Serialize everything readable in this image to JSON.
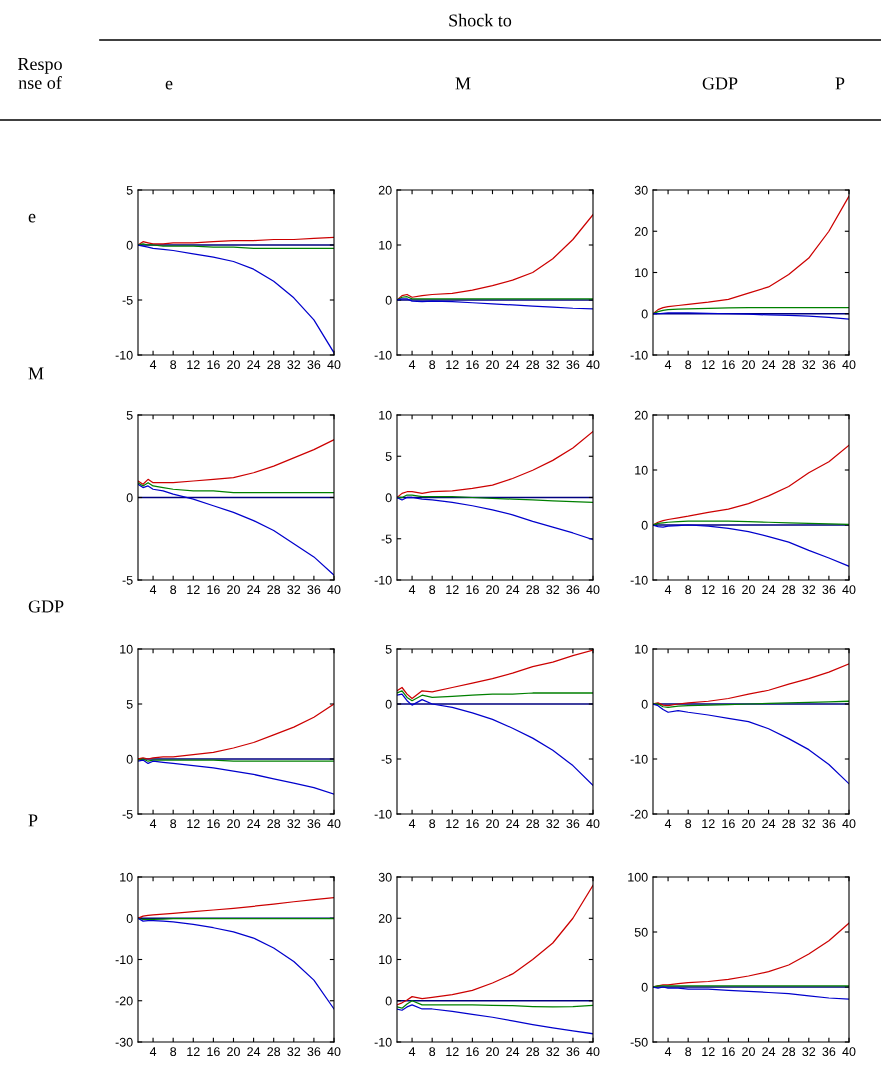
{
  "chart_data": [
    {
      "type": "other",
      "annotations": [
        "Shock to",
        "Respo\nnse of",
        "e",
        "M",
        "GDP",
        "P",
        "e",
        "M",
        "GDP",
        "P"
      ]
    },
    {
      "type": "line",
      "x": [
        1,
        2,
        3,
        4,
        6,
        8,
        12,
        16,
        20,
        24,
        28,
        32,
        36,
        40
      ],
      "xlim": [
        1,
        40
      ],
      "xticks": [
        4,
        8,
        12,
        16,
        20,
        24,
        28,
        32,
        36,
        40
      ],
      "ylim": [
        -10,
        5
      ],
      "yticks": [
        -10,
        -5,
        0,
        5
      ],
      "ref_lines": [
        {
          "axis": "y",
          "value": 0,
          "color": "#00007f"
        }
      ],
      "series": [
        {
          "color": "#cc0000",
          "values": [
            0,
            0.3,
            0.2,
            0.1,
            0.1,
            0.2,
            0.2,
            0.3,
            0.4,
            0.4,
            0.5,
            0.5,
            0.6,
            0.7
          ]
        },
        {
          "color": "#008000",
          "values": [
            0,
            0.1,
            0,
            0,
            -0.1,
            -0.1,
            -0.1,
            -0.2,
            -0.2,
            -0.3,
            -0.3,
            -0.3,
            -0.3,
            -0.3
          ]
        },
        {
          "color": "#0000cc",
          "values": [
            0,
            -0.1,
            -0.2,
            -0.3,
            -0.4,
            -0.5,
            -0.8,
            -1.1,
            -1.5,
            -2.2,
            -3.3,
            -4.8,
            -6.8,
            -9.8
          ]
        }
      ]
    },
    {
      "type": "line",
      "x": [
        1,
        2,
        3,
        4,
        6,
        8,
        12,
        16,
        20,
        24,
        28,
        32,
        36,
        40
      ],
      "xlim": [
        1,
        40
      ],
      "xticks": [
        4,
        8,
        12,
        16,
        20,
        24,
        28,
        32,
        36,
        40
      ],
      "ylim": [
        -10,
        20
      ],
      "yticks": [
        -10,
        0,
        10,
        20
      ],
      "ref_lines": [
        {
          "axis": "y",
          "value": 0,
          "color": "#00007f"
        }
      ],
      "series": [
        {
          "color": "#cc0000",
          "values": [
            0,
            0.8,
            1,
            0.5,
            0.8,
            1,
            1.2,
            1.8,
            2.6,
            3.6,
            5,
            7.5,
            11,
            15.5
          ]
        },
        {
          "color": "#008000",
          "values": [
            0,
            0.5,
            0.6,
            0.2,
            0.2,
            0.2,
            0.2,
            0.2,
            0.2,
            0.2,
            0.2,
            0.2,
            0.2,
            0.2
          ]
        },
        {
          "color": "#0000cc",
          "values": [
            0,
            0.2,
            0.2,
            -0.2,
            -0.3,
            -0.2,
            -0.3,
            -0.5,
            -0.7,
            -0.9,
            -1.1,
            -1.3,
            -1.5,
            -1.6
          ]
        }
      ]
    },
    {
      "type": "line",
      "x": [
        1,
        2,
        3,
        4,
        6,
        8,
        12,
        16,
        20,
        24,
        28,
        32,
        36,
        40
      ],
      "xlim": [
        1,
        40
      ],
      "xticks": [
        4,
        8,
        12,
        16,
        20,
        24,
        28,
        32,
        36,
        40
      ],
      "ylim": [
        -10,
        30
      ],
      "yticks": [
        -10,
        0,
        10,
        20,
        30
      ],
      "ref_lines": [
        {
          "axis": "y",
          "value": 0,
          "color": "#00007f"
        }
      ],
      "series": [
        {
          "color": "#cc0000",
          "values": [
            0,
            1,
            1.5,
            1.7,
            2,
            2.3,
            2.8,
            3.5,
            5,
            6.5,
            9.5,
            13.5,
            20,
            28.5
          ]
        },
        {
          "color": "#008000",
          "values": [
            0,
            0.5,
            0.8,
            1,
            1.1,
            1.2,
            1.3,
            1.4,
            1.5,
            1.5,
            1.5,
            1.5,
            1.5,
            1.5
          ]
        },
        {
          "color": "#0000cc",
          "values": [
            0,
            0,
            0.1,
            0.2,
            0.2,
            0.2,
            0.1,
            0,
            -0.1,
            -0.3,
            -0.4,
            -0.6,
            -0.9,
            -1.3
          ]
        }
      ]
    },
    {
      "type": "line",
      "x": [
        1,
        2,
        3,
        4,
        6,
        8,
        12,
        16,
        20,
        24,
        28,
        32,
        36,
        40
      ],
      "xlim": [
        1,
        40
      ],
      "xticks": [
        4,
        8,
        12,
        16,
        20,
        24,
        28,
        32,
        36,
        40
      ],
      "ylim": [
        -5,
        5
      ],
      "yticks": [
        -5,
        0,
        5
      ],
      "ref_lines": [
        {
          "axis": "y",
          "value": 0,
          "color": "#00007f"
        }
      ],
      "series": [
        {
          "color": "#cc0000",
          "values": [
            1,
            0.8,
            1.1,
            0.9,
            0.9,
            0.9,
            1,
            1.1,
            1.2,
            1.5,
            1.9,
            2.4,
            2.9,
            3.5
          ]
        },
        {
          "color": "#008000",
          "values": [
            0.9,
            0.7,
            0.9,
            0.7,
            0.6,
            0.5,
            0.4,
            0.4,
            0.3,
            0.3,
            0.3,
            0.3,
            0.3,
            0.3
          ]
        },
        {
          "color": "#0000cc",
          "values": [
            0.8,
            0.6,
            0.7,
            0.5,
            0.4,
            0.2,
            -0.1,
            -0.5,
            -0.9,
            -1.4,
            -2,
            -2.8,
            -3.6,
            -4.7
          ]
        }
      ]
    },
    {
      "type": "line",
      "x": [
        1,
        2,
        3,
        4,
        6,
        8,
        12,
        16,
        20,
        24,
        28,
        32,
        36,
        40
      ],
      "xlim": [
        1,
        40
      ],
      "xticks": [
        4,
        8,
        12,
        16,
        20,
        24,
        28,
        32,
        36,
        40
      ],
      "ylim": [
        -10,
        10
      ],
      "yticks": [
        -10,
        -5,
        0,
        5,
        10
      ],
      "ref_lines": [
        {
          "axis": "y",
          "value": 0,
          "color": "#00007f"
        }
      ],
      "series": [
        {
          "color": "#cc0000",
          "values": [
            0,
            0.5,
            0.7,
            0.7,
            0.5,
            0.7,
            0.8,
            1.1,
            1.5,
            2.3,
            3.3,
            4.5,
            6,
            8
          ]
        },
        {
          "color": "#008000",
          "values": [
            0,
            0,
            0.3,
            0.3,
            0.1,
            0.1,
            0.1,
            0,
            -0.1,
            -0.2,
            -0.3,
            -0.4,
            -0.5,
            -0.6
          ]
        },
        {
          "color": "#0000cc",
          "values": [
            0,
            -0.3,
            0,
            0,
            -0.2,
            -0.3,
            -0.6,
            -1,
            -1.5,
            -2.1,
            -2.9,
            -3.6,
            -4.3,
            -5.1
          ]
        }
      ]
    },
    {
      "type": "line",
      "x": [
        1,
        2,
        3,
        4,
        6,
        8,
        12,
        16,
        20,
        24,
        28,
        32,
        36,
        40
      ],
      "xlim": [
        1,
        40
      ],
      "xticks": [
        4,
        8,
        12,
        16,
        20,
        24,
        28,
        32,
        36,
        40
      ],
      "ylim": [
        -10,
        20
      ],
      "yticks": [
        -10,
        0,
        10,
        20
      ],
      "ref_lines": [
        {
          "axis": "y",
          "value": 0,
          "color": "#00007f"
        }
      ],
      "series": [
        {
          "color": "#cc0000",
          "values": [
            0,
            0.5,
            0.8,
            1,
            1.3,
            1.6,
            2.3,
            2.9,
            3.9,
            5.3,
            7,
            9.5,
            11.5,
            14.5
          ]
        },
        {
          "color": "#008000",
          "values": [
            0,
            0.3,
            0.4,
            0.5,
            0.6,
            0.7,
            0.7,
            0.7,
            0.6,
            0.5,
            0.4,
            0.3,
            0.2,
            0.1
          ]
        },
        {
          "color": "#0000cc",
          "values": [
            0,
            -0.3,
            -0.4,
            -0.2,
            -0.1,
            0,
            -0.2,
            -0.6,
            -1.2,
            -2.1,
            -3.1,
            -4.6,
            -6,
            -7.5
          ]
        }
      ]
    },
    {
      "type": "line",
      "x": [
        1,
        2,
        3,
        4,
        6,
        8,
        12,
        16,
        20,
        24,
        28,
        32,
        36,
        40
      ],
      "xlim": [
        1,
        40
      ],
      "xticks": [
        4,
        8,
        12,
        16,
        20,
        24,
        28,
        32,
        36,
        40
      ],
      "ylim": [
        -5,
        10
      ],
      "yticks": [
        -5,
        0,
        5,
        10
      ],
      "ref_lines": [
        {
          "axis": "y",
          "value": 0,
          "color": "#00007f"
        }
      ],
      "series": [
        {
          "color": "#cc0000",
          "values": [
            0,
            0.1,
            0,
            0.1,
            0.2,
            0.2,
            0.4,
            0.6,
            1,
            1.5,
            2.2,
            2.9,
            3.8,
            5
          ]
        },
        {
          "color": "#008000",
          "values": [
            -0.1,
            0,
            -0.2,
            -0.1,
            -0.1,
            -0.1,
            -0.1,
            -0.1,
            -0.2,
            -0.2,
            -0.2,
            -0.2,
            -0.2,
            -0.2
          ]
        },
        {
          "color": "#0000cc",
          "values": [
            -0.2,
            -0.1,
            -0.4,
            -0.2,
            -0.3,
            -0.4,
            -0.6,
            -0.8,
            -1.1,
            -1.4,
            -1.8,
            -2.2,
            -2.6,
            -3.2
          ]
        }
      ]
    },
    {
      "type": "line",
      "x": [
        1,
        2,
        3,
        4,
        6,
        8,
        12,
        16,
        20,
        24,
        28,
        32,
        36,
        40
      ],
      "xlim": [
        1,
        40
      ],
      "xticks": [
        4,
        8,
        12,
        16,
        20,
        24,
        28,
        32,
        36,
        40
      ],
      "ylim": [
        -10,
        5
      ],
      "yticks": [
        -10,
        -5,
        0,
        5
      ],
      "ref_lines": [
        {
          "axis": "y",
          "value": 0,
          "color": "#00007f"
        }
      ],
      "series": [
        {
          "color": "#cc0000",
          "values": [
            1.2,
            1.5,
            0.9,
            0.5,
            1.2,
            1.1,
            1.5,
            1.9,
            2.3,
            2.8,
            3.4,
            3.8,
            4.4,
            4.9
          ]
        },
        {
          "color": "#008000",
          "values": [
            1,
            1.2,
            0.6,
            0.3,
            0.8,
            0.6,
            0.7,
            0.8,
            0.9,
            0.9,
            1,
            1,
            1,
            1
          ]
        },
        {
          "color": "#0000cc",
          "values": [
            0.8,
            0.9,
            0.3,
            -0.1,
            0.4,
            0,
            -0.3,
            -0.8,
            -1.4,
            -2.2,
            -3.1,
            -4.2,
            -5.6,
            -7.4
          ]
        }
      ]
    },
    {
      "type": "line",
      "x": [
        1,
        2,
        3,
        4,
        6,
        8,
        12,
        16,
        20,
        24,
        28,
        32,
        36,
        40
      ],
      "xlim": [
        1,
        40
      ],
      "xticks": [
        4,
        8,
        12,
        16,
        20,
        24,
        28,
        32,
        36,
        40
      ],
      "ylim": [
        -20,
        10
      ],
      "yticks": [
        -20,
        -10,
        0,
        10
      ],
      "ref_lines": [
        {
          "axis": "y",
          "value": 0,
          "color": "#00007f"
        }
      ],
      "series": [
        {
          "color": "#cc0000",
          "values": [
            0,
            0.2,
            -0.2,
            -0.3,
            0,
            0.2,
            0.5,
            1,
            1.8,
            2.5,
            3.6,
            4.6,
            5.8,
            7.3
          ]
        },
        {
          "color": "#008000",
          "values": [
            0,
            0,
            -0.5,
            -0.6,
            -0.4,
            -0.3,
            -0.2,
            -0.1,
            0,
            0.1,
            0.2,
            0.3,
            0.4,
            0.5
          ]
        },
        {
          "color": "#0000cc",
          "values": [
            0,
            -0.3,
            -1,
            -1.5,
            -1.2,
            -1.5,
            -2,
            -2.6,
            -3.2,
            -4.5,
            -6.3,
            -8.3,
            -11,
            -14.5
          ]
        }
      ]
    },
    {
      "type": "line",
      "x": [
        1,
        2,
        3,
        4,
        6,
        8,
        12,
        16,
        20,
        24,
        28,
        32,
        36,
        40
      ],
      "xlim": [
        1,
        40
      ],
      "xticks": [
        4,
        8,
        12,
        16,
        20,
        24,
        28,
        32,
        36,
        40
      ],
      "ylim": [
        -30,
        10
      ],
      "yticks": [
        -30,
        -20,
        -10,
        0,
        10
      ],
      "ref_lines": [
        {
          "axis": "y",
          "value": 0,
          "color": "#00007f"
        }
      ],
      "series": [
        {
          "color": "#cc0000",
          "values": [
            0,
            0.5,
            0.7,
            0.8,
            1,
            1.2,
            1.6,
            2,
            2.4,
            2.9,
            3.4,
            4,
            4.5,
            5
          ]
        },
        {
          "color": "#008000",
          "values": [
            0,
            -0.3,
            -0.3,
            -0.3,
            -0.2,
            -0.1,
            -0.1,
            -0.1,
            -0.1,
            -0.1,
            -0.1,
            -0.1,
            -0.1,
            -0.1
          ]
        },
        {
          "color": "#0000cc",
          "values": [
            0,
            -0.7,
            -0.6,
            -0.6,
            -0.7,
            -0.9,
            -1.5,
            -2.3,
            -3.3,
            -4.8,
            -7.2,
            -10.5,
            -15,
            -22
          ]
        }
      ]
    },
    {
      "type": "line",
      "x": [
        1,
        2,
        3,
        4,
        6,
        8,
        12,
        16,
        20,
        24,
        28,
        32,
        36,
        40
      ],
      "xlim": [
        1,
        40
      ],
      "xticks": [
        4,
        8,
        12,
        16,
        20,
        24,
        28,
        32,
        36,
        40
      ],
      "ylim": [
        -10,
        30
      ],
      "yticks": [
        -10,
        0,
        10,
        20,
        30
      ],
      "ref_lines": [
        {
          "axis": "y",
          "value": 0,
          "color": "#00007f"
        }
      ],
      "series": [
        {
          "color": "#cc0000",
          "values": [
            -1,
            -0.5,
            0.2,
            1,
            0.5,
            0.8,
            1.5,
            2.5,
            4.3,
            6.5,
            10,
            14,
            20,
            28
          ]
        },
        {
          "color": "#008000",
          "values": [
            -1.5,
            -1.8,
            -0.8,
            0,
            -1,
            -1,
            -1,
            -1,
            -1.1,
            -1.2,
            -1.4,
            -1.5,
            -1.4,
            -1.1
          ]
        },
        {
          "color": "#0000cc",
          "values": [
            -2,
            -2.3,
            -1.5,
            -1,
            -2,
            -2,
            -2.6,
            -3.3,
            -4,
            -4.9,
            -5.8,
            -6.6,
            -7.3,
            -8
          ]
        }
      ]
    },
    {
      "type": "line",
      "x": [
        1,
        2,
        3,
        4,
        6,
        8,
        12,
        16,
        20,
        24,
        28,
        32,
        36,
        40
      ],
      "xlim": [
        1,
        40
      ],
      "xticks": [
        4,
        8,
        12,
        16,
        20,
        24,
        28,
        32,
        36,
        40
      ],
      "ylim": [
        -50,
        100
      ],
      "yticks": [
        -50,
        0,
        50,
        100
      ],
      "ref_lines": [
        {
          "axis": "y",
          "value": 0,
          "color": "#00007f"
        }
      ],
      "series": [
        {
          "color": "#cc0000",
          "values": [
            0,
            1,
            2,
            2,
            3,
            4,
            5,
            7,
            10,
            14,
            20,
            30,
            42,
            58
          ]
        },
        {
          "color": "#008000",
          "values": [
            0,
            1,
            1,
            1,
            1,
            1,
            1,
            1,
            1,
            1,
            1,
            1,
            1,
            1
          ]
        },
        {
          "color": "#0000cc",
          "values": [
            0,
            -1,
            0,
            -1,
            -1,
            -2,
            -2,
            -3,
            -4,
            -5,
            -6,
            -8,
            -10,
            -11
          ]
        }
      ]
    }
  ]
}
